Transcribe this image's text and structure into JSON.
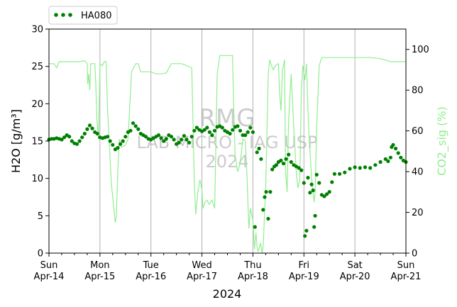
{
  "chart_data": {
    "type": "scatter",
    "watermark": [
      "RMG",
      "LAB MICRO - IAG USP",
      "2024"
    ],
    "xlabel": "2024",
    "ylabel": "H2O [g/m³]",
    "ylabel_right": "CO2_sig (%)",
    "ylim": [
      0,
      30
    ],
    "y2lim": [
      0,
      110
    ],
    "yticks": [
      0,
      5,
      10,
      15,
      20,
      25,
      30
    ],
    "y2ticks": [
      0,
      20,
      40,
      60,
      80,
      100
    ],
    "xlim": [
      0,
      7
    ],
    "xticks": [
      {
        "day": "Sun",
        "date": "Apr-14",
        "x": 0
      },
      {
        "day": "Mon",
        "date": "Apr-15",
        "x": 1
      },
      {
        "day": "Tue",
        "date": "Apr-16",
        "x": 2
      },
      {
        "day": "Wed",
        "date": "Apr-17",
        "x": 3
      },
      {
        "day": "Thu",
        "date": "Apr-18",
        "x": 4
      },
      {
        "day": "Fri",
        "date": "Apr-19",
        "x": 5
      },
      {
        "day": "Sat",
        "date": "Apr-20",
        "x": 6
      },
      {
        "day": "Sun",
        "date": "Apr-21",
        "x": 7
      }
    ],
    "grid_x": true,
    "legend": {
      "position": "top-left",
      "entries": [
        {
          "name": "HA080",
          "color": "#008000",
          "marker": "dots"
        }
      ]
    },
    "colors": {
      "h2o": "#008000",
      "co2": "#90ee90",
      "grid": "#b0b0b0"
    },
    "series": [
      {
        "name": "HA080",
        "axis": "left",
        "style": "markers",
        "points": [
          [
            0.0,
            15.2
          ],
          [
            0.05,
            15.3
          ],
          [
            0.1,
            15.3
          ],
          [
            0.15,
            15.4
          ],
          [
            0.2,
            15.3
          ],
          [
            0.25,
            15.2
          ],
          [
            0.3,
            15.5
          ],
          [
            0.35,
            15.8
          ],
          [
            0.4,
            15.6
          ],
          [
            0.45,
            15.0
          ],
          [
            0.5,
            14.7
          ],
          [
            0.55,
            14.6
          ],
          [
            0.6,
            15.0
          ],
          [
            0.65,
            15.5
          ],
          [
            0.7,
            16.0
          ],
          [
            0.75,
            16.6
          ],
          [
            0.8,
            17.1
          ],
          [
            0.85,
            16.7
          ],
          [
            0.9,
            16.2
          ],
          [
            0.95,
            16.0
          ],
          [
            1.0,
            15.5
          ],
          [
            1.05,
            15.4
          ],
          [
            1.1,
            15.5
          ],
          [
            1.15,
            15.6
          ],
          [
            1.2,
            15.0
          ],
          [
            1.25,
            14.5
          ],
          [
            1.3,
            13.9
          ],
          [
            1.35,
            14.1
          ],
          [
            1.4,
            14.6
          ],
          [
            1.45,
            15.0
          ],
          [
            1.5,
            15.6
          ],
          [
            1.55,
            16.2
          ],
          [
            1.6,
            16.4
          ],
          [
            1.65,
            17.4
          ],
          [
            1.7,
            17.0
          ],
          [
            1.75,
            16.6
          ],
          [
            1.8,
            16.0
          ],
          [
            1.85,
            15.8
          ],
          [
            1.9,
            15.6
          ],
          [
            1.95,
            15.3
          ],
          [
            2.0,
            15.2
          ],
          [
            2.05,
            15.4
          ],
          [
            2.1,
            15.6
          ],
          [
            2.15,
            15.8
          ],
          [
            2.2,
            15.4
          ],
          [
            2.25,
            15.0
          ],
          [
            2.3,
            15.3
          ],
          [
            2.35,
            15.8
          ],
          [
            2.4,
            15.6
          ],
          [
            2.45,
            15.2
          ],
          [
            2.5,
            14.6
          ],
          [
            2.55,
            14.8
          ],
          [
            2.6,
            15.2
          ],
          [
            2.65,
            15.7
          ],
          [
            2.7,
            15.2
          ],
          [
            2.75,
            14.8
          ],
          [
            2.8,
            15.6
          ],
          [
            2.85,
            16.4
          ],
          [
            2.9,
            16.8
          ],
          [
            2.95,
            16.5
          ],
          [
            3.0,
            16.3
          ],
          [
            3.05,
            16.5
          ],
          [
            3.1,
            16.8
          ],
          [
            3.15,
            16.2
          ],
          [
            3.2,
            15.8
          ],
          [
            3.25,
            16.4
          ],
          [
            3.3,
            16.9
          ],
          [
            3.35,
            17.0
          ],
          [
            3.4,
            16.8
          ],
          [
            3.45,
            16.4
          ],
          [
            3.5,
            16.2
          ],
          [
            3.55,
            16.0
          ],
          [
            3.6,
            16.5
          ],
          [
            3.65,
            16.9
          ],
          [
            3.7,
            17.0
          ],
          [
            3.75,
            16.4
          ],
          [
            3.8,
            15.8
          ],
          [
            3.85,
            15.8
          ],
          [
            3.9,
            16.2
          ],
          [
            3.95,
            16.8
          ],
          [
            4.0,
            16.2
          ],
          [
            4.04,
            3.5
          ],
          [
            4.08,
            13.5
          ],
          [
            4.12,
            14.0
          ],
          [
            4.16,
            12.6
          ],
          [
            4.2,
            5.8
          ],
          [
            4.23,
            7.5
          ],
          [
            4.26,
            8.2
          ],
          [
            4.3,
            4.6
          ],
          [
            4.34,
            8.2
          ],
          [
            4.38,
            11.2
          ],
          [
            4.42,
            11.6
          ],
          [
            4.46,
            11.8
          ],
          [
            4.5,
            12.2
          ],
          [
            4.55,
            12.4
          ],
          [
            4.6,
            12.0
          ],
          [
            4.65,
            12.6
          ],
          [
            4.7,
            13.2
          ],
          [
            4.75,
            12.2
          ],
          [
            4.8,
            11.8
          ],
          [
            4.85,
            11.6
          ],
          [
            4.9,
            11.4
          ],
          [
            4.95,
            11.1
          ],
          [
            5.0,
            9.4
          ],
          [
            5.02,
            2.3
          ],
          [
            5.05,
            3.0
          ],
          [
            5.08,
            10.1
          ],
          [
            5.12,
            8.1
          ],
          [
            5.15,
            9.2
          ],
          [
            5.18,
            8.4
          ],
          [
            5.2,
            3.5
          ],
          [
            5.22,
            5.0
          ],
          [
            5.25,
            10.5
          ],
          [
            5.3,
            9.4
          ],
          [
            5.35,
            7.8
          ],
          [
            5.4,
            7.6
          ],
          [
            5.45,
            7.9
          ],
          [
            5.5,
            8.2
          ],
          [
            5.55,
            9.5
          ],
          [
            5.6,
            10.6
          ],
          [
            5.7,
            10.6
          ],
          [
            5.8,
            10.8
          ],
          [
            5.9,
            11.3
          ],
          [
            6.0,
            11.5
          ],
          [
            6.1,
            11.4
          ],
          [
            6.2,
            11.5
          ],
          [
            6.3,
            11.4
          ],
          [
            6.4,
            11.8
          ],
          [
            6.5,
            12.2
          ],
          [
            6.6,
            12.6
          ],
          [
            6.65,
            12.3
          ],
          [
            6.7,
            12.8
          ],
          [
            6.72,
            14.2
          ],
          [
            6.75,
            14.5
          ],
          [
            6.8,
            14.0
          ],
          [
            6.85,
            13.4
          ],
          [
            6.9,
            12.8
          ],
          [
            6.95,
            12.4
          ],
          [
            7.0,
            12.2
          ]
        ]
      },
      {
        "name": "CO2_sig",
        "axis": "right",
        "style": "line",
        "points": [
          [
            0.0,
            93
          ],
          [
            0.1,
            93
          ],
          [
            0.15,
            91
          ],
          [
            0.2,
            94
          ],
          [
            0.3,
            94
          ],
          [
            0.5,
            94
          ],
          [
            0.6,
            94
          ],
          [
            0.7,
            94.5
          ],
          [
            0.75,
            93
          ],
          [
            0.76,
            83
          ],
          [
            0.78,
            88
          ],
          [
            0.8,
            80
          ],
          [
            0.82,
            93
          ],
          [
            0.9,
            93
          ],
          [
            0.92,
            82
          ],
          [
            0.94,
            66
          ],
          [
            0.97,
            56
          ],
          [
            1.0,
            93
          ],
          [
            1.05,
            92
          ],
          [
            1.08,
            94
          ],
          [
            1.12,
            94
          ],
          [
            1.15,
            70
          ],
          [
            1.18,
            56
          ],
          [
            1.22,
            35
          ],
          [
            1.3,
            15
          ],
          [
            1.32,
            18
          ],
          [
            1.35,
            40
          ],
          [
            1.38,
            56
          ],
          [
            1.42,
            52
          ],
          [
            1.5,
            53
          ],
          [
            1.55,
            56
          ],
          [
            1.62,
            89
          ],
          [
            1.7,
            93
          ],
          [
            1.75,
            93
          ],
          [
            1.8,
            89
          ],
          [
            2.0,
            89
          ],
          [
            2.1,
            88
          ],
          [
            2.2,
            88
          ],
          [
            2.3,
            88.5
          ],
          [
            2.4,
            93
          ],
          [
            2.6,
            93
          ],
          [
            2.7,
            92
          ],
          [
            2.8,
            91
          ],
          [
            2.82,
            70
          ],
          [
            2.85,
            35
          ],
          [
            2.88,
            19
          ],
          [
            2.92,
            30
          ],
          [
            2.96,
            36
          ],
          [
            3.0,
            31
          ],
          [
            3.02,
            22
          ],
          [
            3.06,
            25
          ],
          [
            3.1,
            26
          ],
          [
            3.14,
            24
          ],
          [
            3.2,
            26
          ],
          [
            3.25,
            22
          ],
          [
            3.3,
            88
          ],
          [
            3.35,
            97
          ],
          [
            3.5,
            97
          ],
          [
            3.6,
            97
          ],
          [
            3.62,
            75
          ],
          [
            3.65,
            48
          ],
          [
            3.7,
            40
          ],
          [
            3.75,
            44
          ],
          [
            3.8,
            56
          ],
          [
            3.85,
            55
          ],
          [
            3.88,
            40
          ],
          [
            3.92,
            12
          ],
          [
            3.95,
            22
          ],
          [
            4.0,
            16
          ],
          [
            4.03,
            2
          ],
          [
            4.06,
            10
          ],
          [
            4.08,
            3
          ],
          [
            4.1,
            1
          ],
          [
            4.12,
            2
          ],
          [
            4.15,
            5
          ],
          [
            4.18,
            0
          ],
          [
            4.2,
            3
          ],
          [
            4.25,
            32
          ],
          [
            4.3,
            88
          ],
          [
            4.33,
            95
          ],
          [
            4.36,
            92
          ],
          [
            4.4,
            90
          ],
          [
            4.44,
            92
          ],
          [
            4.5,
            93
          ],
          [
            4.52,
            80
          ],
          [
            4.55,
            70
          ],
          [
            4.58,
            90
          ],
          [
            4.62,
            95
          ],
          [
            4.64,
            40
          ],
          [
            4.67,
            30
          ],
          [
            4.7,
            65
          ],
          [
            4.75,
            88
          ],
          [
            4.8,
            62
          ],
          [
            4.85,
            40
          ],
          [
            4.88,
            32
          ],
          [
            4.92,
            36
          ],
          [
            4.95,
            80
          ],
          [
            4.98,
            92
          ],
          [
            5.02,
            85
          ],
          [
            5.05,
            93
          ],
          [
            5.08,
            70
          ],
          [
            5.1,
            58
          ],
          [
            5.13,
            45
          ],
          [
            5.16,
            34
          ],
          [
            5.2,
            25
          ],
          [
            5.22,
            30
          ],
          [
            5.25,
            62
          ],
          [
            5.3,
            92
          ],
          [
            5.35,
            96
          ],
          [
            5.5,
            96
          ],
          [
            5.7,
            96
          ],
          [
            5.9,
            96
          ],
          [
            6.1,
            96
          ],
          [
            6.3,
            96
          ],
          [
            6.5,
            95.5
          ],
          [
            6.7,
            94
          ],
          [
            6.9,
            94
          ],
          [
            7.0,
            94
          ]
        ]
      }
    ]
  }
}
